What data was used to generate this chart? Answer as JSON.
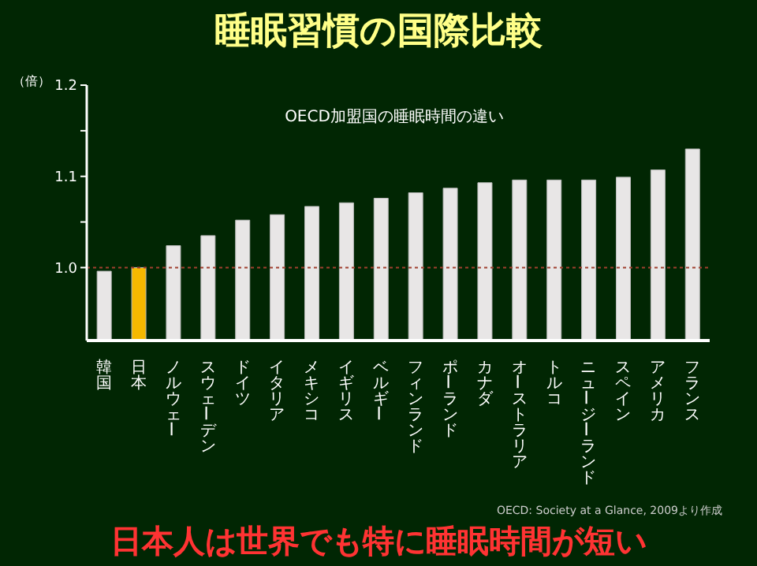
{
  "chart_data": {
    "type": "bar",
    "title": "睡眠習慣の国際比較",
    "subtitle": "OECD加盟国の睡眠時間の違い",
    "ylabel": "（倍）",
    "categories": [
      "韓国",
      "日本",
      "ノルウェー",
      "スウェーデン",
      "ドイツ",
      "イタリア",
      "メキシコ",
      "イギリス",
      "ベルギー",
      "フィンランド",
      "ポーランド",
      "カナダ",
      "オーストラリア",
      "トルコ",
      "ニュージーランド",
      "スペイン",
      "アメリカ",
      "フランス"
    ],
    "values": [
      0.996,
      1.0,
      1.024,
      1.035,
      1.052,
      1.058,
      1.067,
      1.071,
      1.076,
      1.082,
      1.087,
      1.093,
      1.096,
      1.096,
      1.096,
      1.099,
      1.107,
      1.13
    ],
    "colors": [
      "#e8e6e6",
      "#f5b800",
      "#e8e6e6",
      "#e8e6e6",
      "#e8e6e6",
      "#e8e6e6",
      "#e8e6e6",
      "#e8e6e6",
      "#e8e6e6",
      "#e8e6e6",
      "#e8e6e6",
      "#e8e6e6",
      "#e8e6e6",
      "#e8e6e6",
      "#e8e6e6",
      "#e8e6e6",
      "#e8e6e6",
      "#e8e6e6"
    ],
    "ylim": [
      0.92,
      1.2
    ],
    "yticks": [
      {
        "value": 1.0,
        "label": "1.0"
      },
      {
        "value": 1.05,
        "label": null
      },
      {
        "value": 1.1,
        "label": "1.1"
      },
      {
        "value": 1.15,
        "label": null
      },
      {
        "value": 1.2,
        "label": "1.2"
      }
    ],
    "ref_lines": [
      {
        "axis": "y",
        "value": 1.0,
        "color": "#a04030",
        "line_style": "dotted"
      }
    ],
    "grid": false,
    "annotations": [
      "OECD: Society at a Glance, 2009より作成",
      "日本人は世界でも特に睡眠時間が短い"
    ]
  }
}
